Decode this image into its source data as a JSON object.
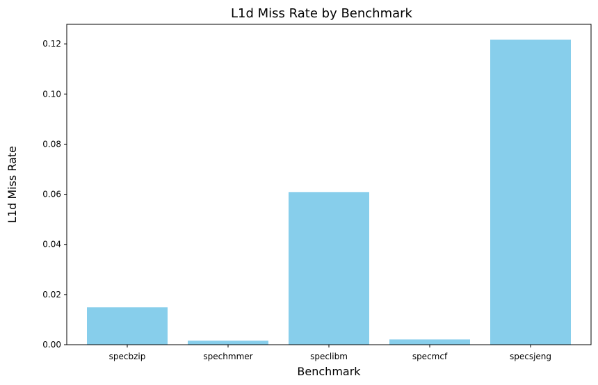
{
  "chart_data": {
    "type": "bar",
    "title": "L1d Miss Rate by Benchmark",
    "xlabel": "Benchmark",
    "ylabel": "L1d Miss Rate",
    "categories": [
      "specbzip",
      "spechmmer",
      "speclibm",
      "specmcf",
      "specsjeng"
    ],
    "values": [
      0.0149,
      0.0016,
      0.0609,
      0.0021,
      0.1217
    ],
    "ylim": [
      0,
      0.1278
    ],
    "yticks": [
      "0.00",
      "0.02",
      "0.04",
      "0.06",
      "0.08",
      "0.10",
      "0.12"
    ],
    "bar_color": "#87ceeb",
    "grid": false
  }
}
